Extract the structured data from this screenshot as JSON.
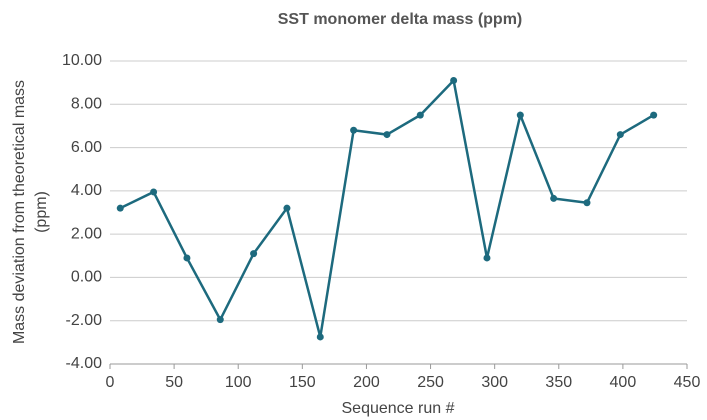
{
  "chart_data": {
    "type": "line",
    "title": "SST monomer delta mass  (ppm)",
    "xlabel": "Sequence run #",
    "ylabel": [
      "Mass  deviation from theoretical mass",
      "(ppm)"
    ],
    "x": [
      8,
      34,
      60,
      86,
      112,
      138,
      164,
      190,
      216,
      242,
      268,
      294,
      320,
      346,
      372,
      398,
      424
    ],
    "series": [
      {
        "name": "SST monomer delta mass",
        "color": "#1d6a7e",
        "values": [
          3.2,
          3.95,
          0.9,
          -1.95,
          1.1,
          3.2,
          -2.75,
          6.8,
          6.6,
          7.5,
          9.1,
          0.9,
          7.5,
          3.65,
          3.45,
          6.6,
          7.5
        ]
      }
    ],
    "xlim": [
      0,
      450
    ],
    "xticks": [
      0,
      50,
      100,
      150,
      200,
      250,
      300,
      350,
      400,
      450
    ],
    "ylim": [
      -4,
      10
    ],
    "yticks": [
      {
        "value": -4,
        "label": "-4.00"
      },
      {
        "value": -2,
        "label": "-2.00"
      },
      {
        "value": 0,
        "label": "0.00"
      },
      {
        "value": 2,
        "label": "2.00"
      },
      {
        "value": 4,
        "label": "4.00"
      },
      {
        "value": 6,
        "label": "6.00"
      },
      {
        "value": 8,
        "label": "8.00"
      },
      {
        "value": 10,
        "label": "10.00"
      }
    ],
    "grid": true
  }
}
